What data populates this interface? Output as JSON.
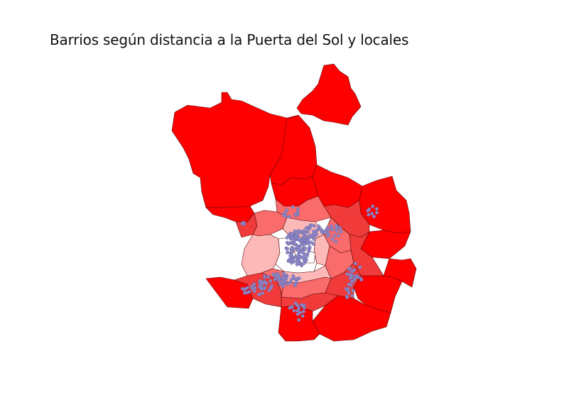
{
  "map": {
    "title": "Barrios según distancia a la Puerta del Sol y locales",
    "colors": {
      "far": "#ff0000",
      "mid_far": "#f13a3a",
      "mid": "#fa6b6b",
      "near": "#fdb8b8",
      "center": "#ffffff",
      "points": "#8f88c8",
      "border": "#5a0a0a"
    },
    "legend": null
  }
}
